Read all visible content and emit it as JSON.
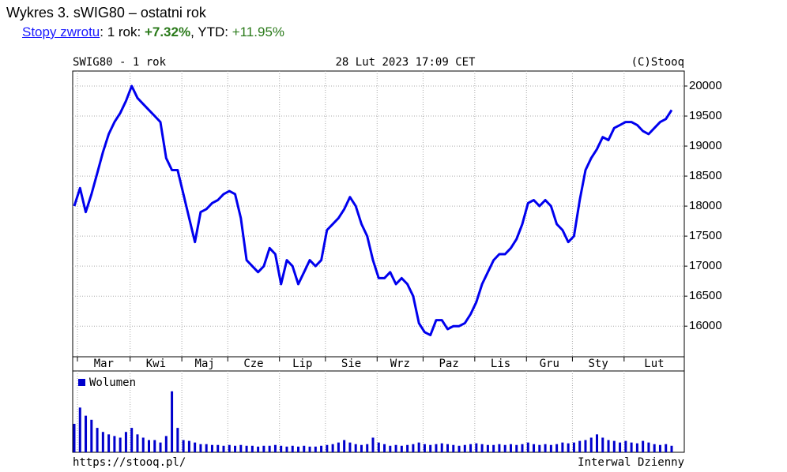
{
  "header": {
    "title": "Wykres 3. sWIG80 – ostatni rok",
    "returns": [
      {
        "text": "Stopy zwrotu",
        "style": "link"
      },
      {
        "text": ": 1 rok: "
      },
      {
        "text": "+7.32%",
        "style": "bold-green"
      },
      {
        "text": ", YTD: "
      },
      {
        "text": "+11.95%",
        "style": "green"
      }
    ]
  },
  "chart_data": [
    {
      "type": "line",
      "title": "SWIG80 - 1 rok",
      "subtitle": "28 Lut 2023 17:09 CET",
      "source": "(C)Stooq",
      "color": "#0000ee",
      "categories": [
        "Mar",
        null,
        null,
        null,
        null,
        null,
        null,
        null,
        null,
        null,
        "Kwi",
        null,
        null,
        null,
        null,
        null,
        null,
        null,
        null,
        "Maj",
        null,
        null,
        null,
        null,
        null,
        null,
        null,
        "Cze",
        null,
        null,
        null,
        null,
        null,
        null,
        null,
        null,
        "Lip",
        null,
        null,
        null,
        null,
        null,
        null,
        null,
        "Sie",
        null,
        null,
        null,
        null,
        null,
        null,
        null,
        null,
        "Wrz",
        null,
        null,
        null,
        null,
        null,
        null,
        null,
        "Paz",
        null,
        null,
        null,
        null,
        null,
        null,
        null,
        null,
        "Lis",
        null,
        null,
        null,
        null,
        null,
        null,
        null,
        null,
        "Gru",
        null,
        null,
        null,
        null,
        null,
        null,
        null,
        "Sty",
        null,
        null,
        null,
        null,
        null,
        null,
        null,
        null,
        "Lut",
        null,
        null,
        null,
        null,
        null,
        null,
        null,
        null
      ],
      "values": [
        18000,
        18300,
        17900,
        18200,
        18550,
        18900,
        19200,
        19400,
        19550,
        19750,
        20000,
        19800,
        19700,
        19600,
        19500,
        19400,
        18800,
        18600,
        18600,
        18200,
        17800,
        17400,
        17900,
        17950,
        18050,
        18100,
        18200,
        18250,
        18200,
        17800,
        17100,
        17000,
        16900,
        17000,
        17300,
        17200,
        16700,
        17100,
        17000,
        16700,
        16900,
        17100,
        17000,
        17100,
        17600,
        17700,
        17800,
        17950,
        18150,
        18000,
        17700,
        17500,
        17100,
        16800,
        16800,
        16900,
        16700,
        16800,
        16700,
        16500,
        16050,
        15900,
        15850,
        16100,
        16100,
        15950,
        16000,
        16000,
        16050,
        16200,
        16400,
        16700,
        16900,
        17100,
        17200,
        17200,
        17300,
        17450,
        17700,
        18050,
        18100,
        18000,
        18100,
        18000,
        17700,
        17600,
        17400,
        17500,
        18100,
        18600,
        18800,
        18950,
        19150,
        19100,
        19300,
        19350,
        19400,
        19400,
        19350,
        19250,
        19200,
        19300,
        19400,
        19450,
        19600
      ],
      "ylim": [
        15490,
        20250
      ],
      "yticks": [
        16000,
        16500,
        17000,
        17500,
        18000,
        18500,
        19000,
        19500,
        20000
      ],
      "grid": true
    },
    {
      "type": "bar",
      "ylim": [
        0,
        100
      ],
      "series": [
        {
          "name": "Wolumen",
          "color": "#0000cc",
          "values": [
            35,
            55,
            45,
            40,
            30,
            25,
            22,
            20,
            18,
            25,
            30,
            22,
            18,
            15,
            15,
            12,
            20,
            75,
            30,
            15,
            14,
            12,
            10,
            10,
            9,
            9,
            8,
            9,
            8,
            9,
            8,
            8,
            7,
            8,
            8,
            9,
            8,
            7,
            8,
            7,
            8,
            7,
            7,
            8,
            9,
            10,
            12,
            15,
            12,
            10,
            9,
            10,
            18,
            12,
            10,
            8,
            9,
            8,
            9,
            10,
            12,
            10,
            9,
            10,
            11,
            10,
            9,
            8,
            9,
            10,
            11,
            10,
            9,
            9,
            10,
            9,
            10,
            9,
            10,
            12,
            10,
            9,
            10,
            9,
            10,
            12,
            11,
            12,
            14,
            15,
            18,
            22,
            18,
            15,
            14,
            12,
            14,
            12,
            11,
            14,
            12,
            10,
            9,
            10,
            8
          ]
        }
      ]
    }
  ],
  "footer": {
    "url": "https://stooq.pl/",
    "interval": "Interwal Dzienny"
  }
}
